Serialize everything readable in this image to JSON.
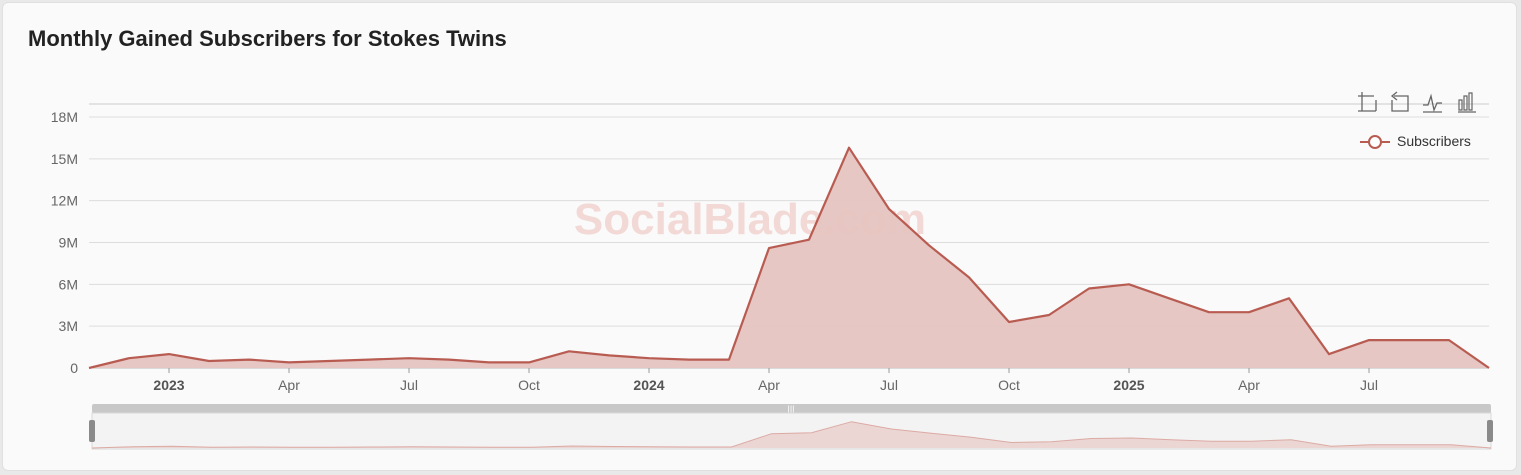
{
  "title": "Monthly Gained Subscribers for Stokes Twins",
  "watermark": "SocialBlade.com",
  "toolbar": [
    {
      "name": "zoom-icon"
    },
    {
      "name": "zoom-reset-icon"
    },
    {
      "name": "line-chart-icon"
    },
    {
      "name": "bar-chart-icon"
    }
  ],
  "colors": {
    "series": "#b85c52",
    "fill": "#e6c4c0",
    "grid": "#dddddd",
    "axis": "#666666",
    "watermark": "#f2d9d6"
  },
  "chart_data": {
    "type": "area",
    "title": "Monthly Gained Subscribers for Stokes Twins",
    "x": [
      "2022-11",
      "2022-12",
      "2023-01",
      "2023-02",
      "2023-03",
      "2023-04",
      "2023-05",
      "2023-06",
      "2023-07",
      "2023-08",
      "2023-09",
      "2023-10",
      "2023-11",
      "2023-12",
      "2024-01",
      "2024-02",
      "2024-03",
      "2024-04",
      "2024-05",
      "2024-06",
      "2024-07",
      "2024-08",
      "2024-09",
      "2024-10",
      "2024-11",
      "2024-12",
      "2025-01",
      "2025-02",
      "2025-03",
      "2025-04",
      "2025-05",
      "2025-06",
      "2025-07",
      "2025-08",
      "2025-09",
      "2025-10"
    ],
    "series": [
      {
        "name": "Subscribers",
        "values": [
          0,
          700000,
          1000000,
          500000,
          600000,
          400000,
          500000,
          600000,
          700000,
          600000,
          400000,
          400000,
          1200000,
          900000,
          700000,
          600000,
          600000,
          8600000,
          9200000,
          15800000,
          11400000,
          8800000,
          6500000,
          3300000,
          3800000,
          5700000,
          6000000,
          5000000,
          4000000,
          4000000,
          5000000,
          1000000,
          2000000,
          2000000,
          2000000,
          0
        ]
      }
    ],
    "ylim": [
      0,
      18000000
    ],
    "y_ticks": [
      "0",
      "3M",
      "6M",
      "9M",
      "12M",
      "15M",
      "18M"
    ],
    "x_ticks": [
      {
        "label": "2023",
        "at": "2023-01",
        "bold": true
      },
      {
        "label": "Apr",
        "at": "2023-04",
        "bold": false
      },
      {
        "label": "Jul",
        "at": "2023-07",
        "bold": false
      },
      {
        "label": "Oct",
        "at": "2023-10",
        "bold": false
      },
      {
        "label": "2024",
        "at": "2024-01",
        "bold": true
      },
      {
        "label": "Apr",
        "at": "2024-04",
        "bold": false
      },
      {
        "label": "Jul",
        "at": "2024-07",
        "bold": false
      },
      {
        "label": "Oct",
        "at": "2024-10",
        "bold": false
      },
      {
        "label": "2025",
        "at": "2025-01",
        "bold": true
      },
      {
        "label": "Apr",
        "at": "2025-04",
        "bold": false
      },
      {
        "label": "Jul",
        "at": "2025-07",
        "bold": false
      }
    ],
    "grid": true,
    "legend": "top-right"
  }
}
